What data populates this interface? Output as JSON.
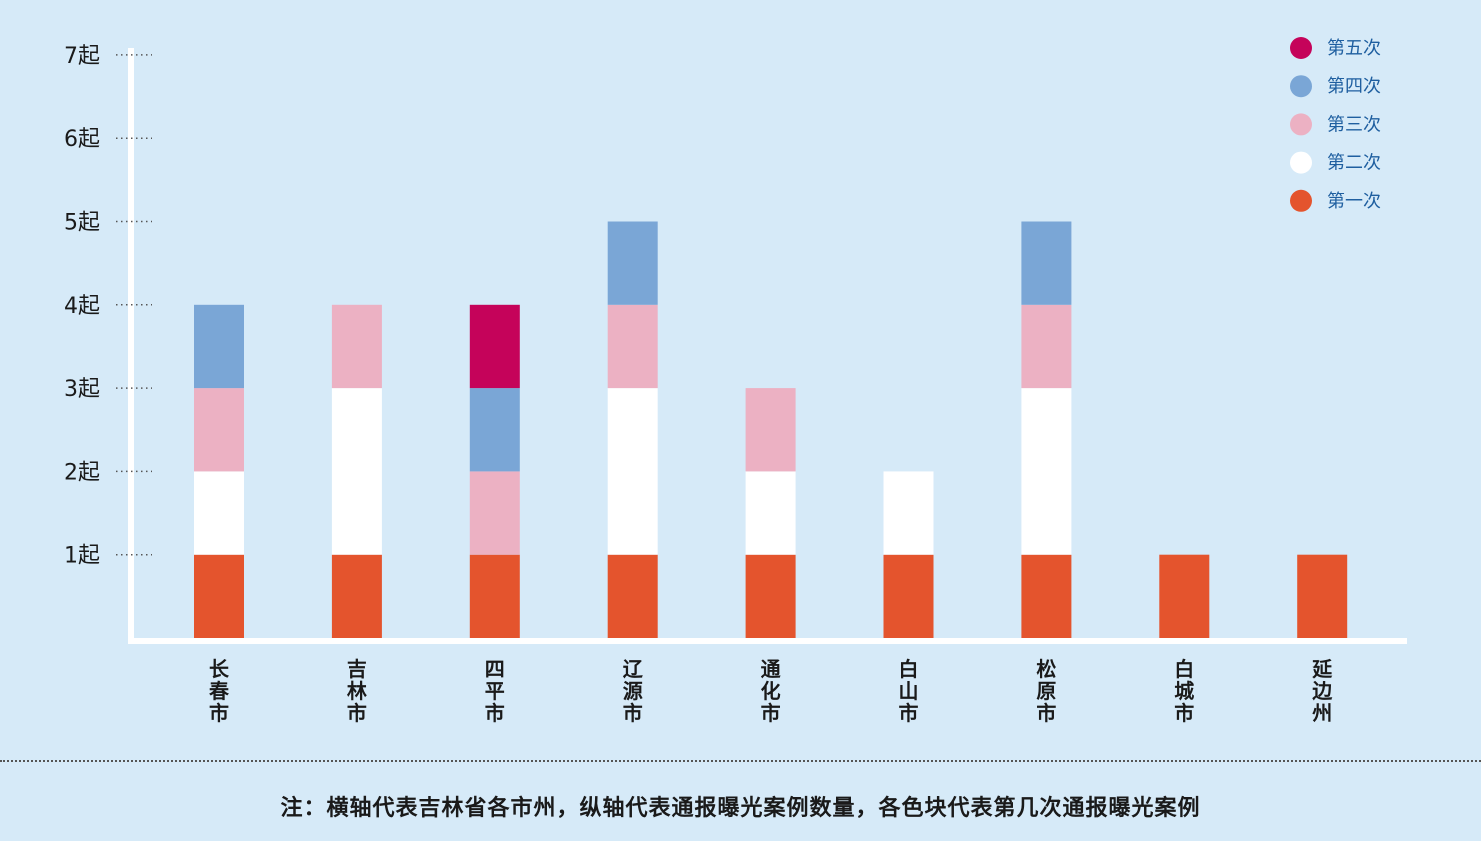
{
  "chart_data": {
    "type": "bar",
    "stacked": true,
    "categories": [
      "长春市",
      "吉林市",
      "四平市",
      "辽源市",
      "通化市",
      "白山市",
      "松原市",
      "白城市",
      "延边州"
    ],
    "series": [
      {
        "name": "第一次",
        "color": "#e4542d",
        "values": [
          1,
          1,
          1,
          1,
          1,
          1,
          1,
          1,
          1
        ]
      },
      {
        "name": "第二次",
        "color": "#ffffff",
        "values": [
          1,
          2,
          0,
          2,
          1,
          1,
          2,
          0,
          0
        ]
      },
      {
        "name": "第三次",
        "color": "#ecb1c3",
        "values": [
          1,
          1,
          1,
          1,
          1,
          0,
          1,
          0,
          0
        ]
      },
      {
        "name": "第四次",
        "color": "#7aa6d6",
        "values": [
          1,
          0,
          1,
          1,
          0,
          0,
          1,
          0,
          0
        ]
      },
      {
        "name": "第五次",
        "color": "#c5035a",
        "values": [
          0,
          0,
          1,
          0,
          0,
          0,
          0,
          0,
          0
        ]
      }
    ],
    "y_ticks": [
      "1起",
      "2起",
      "3起",
      "4起",
      "5起",
      "6起",
      "7起"
    ],
    "ylim": [
      0,
      7
    ],
    "legend_position": "top-right",
    "legend_order": [
      "第五次",
      "第四次",
      "第三次",
      "第二次",
      "第一次"
    ]
  },
  "note": "注：横轴代表吉林省各市州，纵轴代表通报曝光案例数量，各色块代表第几次通报曝光案例",
  "colors": {
    "background": "#d6eaf8",
    "axis": "#ffffff"
  }
}
